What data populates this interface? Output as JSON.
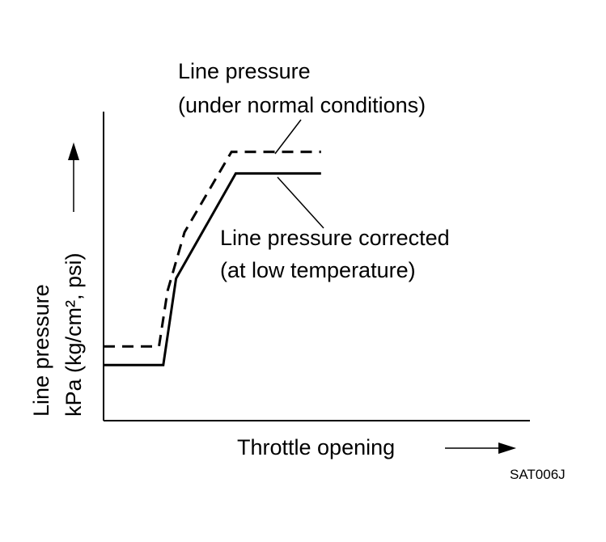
{
  "chart_data": {
    "type": "line",
    "title": "",
    "xlabel": "Throttle opening",
    "ylabel_line1": "Line pressure",
    "ylabel_line2": "kPa (kg/cm², psi)",
    "series": [
      {
        "name": "Line pressure (under normal conditions)",
        "label_line1": "Line pressure",
        "label_line2": "(under normal conditions)",
        "style": "dashed",
        "x": [
          0,
          13,
          15,
          19,
          30,
          51
        ],
        "y": [
          24,
          24,
          42,
          61,
          87,
          87
        ]
      },
      {
        "name": "Line pressure corrected (at low temperature)",
        "label_line1": "Line pressure corrected",
        "label_line2": "(at low temperature)",
        "style": "solid",
        "x": [
          0,
          14,
          17,
          31,
          51
        ],
        "y": [
          18,
          18,
          46,
          80,
          80
        ]
      }
    ],
    "xlim": [
      0,
      100
    ],
    "ylim": [
      0,
      100
    ],
    "grid": false,
    "legend": "callout labels",
    "ticks": "none"
  },
  "figure_code": "SAT006J",
  "colors": {
    "line": "#000000",
    "background": "#ffffff"
  }
}
